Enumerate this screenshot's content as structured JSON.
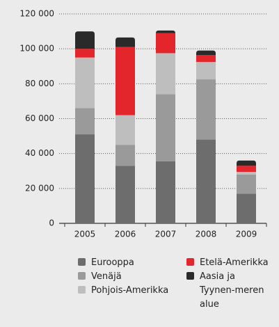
{
  "chart_data": {
    "type": "stacked_bar",
    "categories": [
      "2005",
      "2006",
      "2007",
      "2008",
      "2009"
    ],
    "series": [
      {
        "name": "Eurooppa",
        "color": "#6d6d6d",
        "values": [
          51000,
          33000,
          35500,
          48000,
          17000
        ]
      },
      {
        "name": "Venäjä",
        "color": "#9a9a9a",
        "values": [
          15000,
          12000,
          38500,
          34500,
          11000
        ]
      },
      {
        "name": "Pohjois-Amerikka",
        "color": "#bebebe",
        "values": [
          29000,
          17000,
          23500,
          10000,
          1500
        ]
      },
      {
        "name": "Etelä-Amerikka",
        "color": "#e2262b",
        "values": [
          5000,
          39000,
          11500,
          4000,
          3500
        ]
      },
      {
        "name": "Aasia ja Tyynen-meren alue",
        "color": "#2a2a2a",
        "values": [
          10000,
          5500,
          1500,
          2500,
          3000
        ]
      }
    ],
    "ylim": [
      0,
      120000
    ],
    "yticks": [
      0,
      {
        "value": 20000,
        "label": "20 000"
      },
      {
        "value": 40000,
        "label": "40 000"
      },
      {
        "value": 60000,
        "label": "60 000"
      },
      {
        "value": 80000,
        "label": "80 000"
      },
      {
        "value": 100000,
        "label": "100 000"
      },
      {
        "value": 120000,
        "label": "120 000"
      }
    ],
    "grid": true
  }
}
